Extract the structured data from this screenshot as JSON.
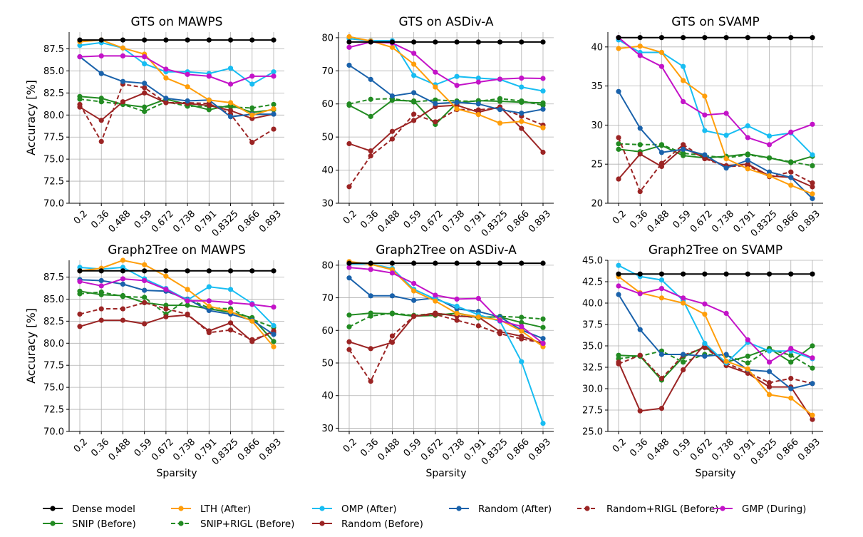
{
  "x_ticks": [
    "0.2",
    "0.36",
    "0.488",
    "0.59",
    "0.672",
    "0.738",
    "0.791",
    "0.8325",
    "0.866",
    "0.893"
  ],
  "series_styles": [
    {
      "key": "dense",
      "color": "#000000",
      "dashed": false
    },
    {
      "key": "lth",
      "color": "#ff9e0a",
      "dashed": false
    },
    {
      "key": "omp",
      "color": "#18bdf2",
      "dashed": false
    },
    {
      "key": "random_after",
      "color": "#1a62ab",
      "dashed": false
    },
    {
      "key": "random_rigl",
      "color": "#9b2424",
      "dashed": true
    },
    {
      "key": "gmp",
      "color": "#c313c8",
      "dashed": false
    },
    {
      "key": "snip",
      "color": "#228b22",
      "dashed": false
    },
    {
      "key": "snip_rigl",
      "color": "#228b22",
      "dashed": true
    },
    {
      "key": "random_before",
      "color": "#9b2424",
      "dashed": false
    }
  ],
  "legend": [
    {
      "key": "dense",
      "label": "Dense model"
    },
    {
      "key": "lth",
      "label": "LTH (After)"
    },
    {
      "key": "omp",
      "label": "OMP (After)"
    },
    {
      "key": "random_after",
      "label": "Random (After)"
    },
    {
      "key": "random_rigl",
      "label": "Random+RIGL (Before)"
    },
    {
      "key": "gmp",
      "label": "GMP (During)"
    },
    {
      "key": "snip",
      "label": "SNIP (Before)"
    },
    {
      "key": "snip_rigl",
      "label": "SNIP+RIGL (Before)"
    },
    {
      "key": "random_before",
      "label": "Random (Before)"
    }
  ],
  "chart_data": [
    {
      "type": "line",
      "title": "GTS on MAWPS",
      "ylabel": "Accuracy [%]",
      "xlabel": "",
      "ylim": [
        70.0,
        89.4
      ],
      "yticks": [
        "70.0",
        "72.5",
        "75.0",
        "77.5",
        "80.0",
        "82.5",
        "85.0",
        "87.5"
      ],
      "grid": true,
      "series": {
        "dense": [
          88.5,
          88.5,
          88.5,
          88.5,
          88.5,
          88.5,
          88.5,
          88.5,
          88.5,
          88.5
        ],
        "lth": [
          88.3,
          88.5,
          87.6,
          86.9,
          84.2,
          83.2,
          81.7,
          81.4,
          80.0,
          80.7
        ],
        "omp": [
          87.9,
          88.2,
          87.6,
          85.8,
          84.9,
          84.9,
          84.7,
          85.3,
          83.5,
          84.9
        ],
        "random_after": [
          86.6,
          84.7,
          83.8,
          83.6,
          81.9,
          81.6,
          81.7,
          79.8,
          80.1,
          80.1
        ],
        "random_rigl": [
          81.2,
          77.0,
          83.5,
          83.1,
          81.4,
          81.4,
          81.3,
          80.1,
          76.9,
          78.4
        ],
        "gmp": [
          86.6,
          86.7,
          86.7,
          86.6,
          85.2,
          84.6,
          84.4,
          83.5,
          84.4,
          84.4
        ],
        "snip": [
          82.1,
          81.9,
          81.2,
          80.9,
          81.8,
          81.2,
          80.6,
          81.1,
          80.3,
          80.6
        ],
        "snip_rigl": [
          81.8,
          81.5,
          81.2,
          80.4,
          81.5,
          81.0,
          81.0,
          80.9,
          80.8,
          81.2
        ],
        "random_before": [
          80.9,
          79.4,
          81.5,
          82.5,
          81.4,
          81.3,
          81.1,
          80.5,
          79.6,
          80.1
        ]
      }
    },
    {
      "type": "line",
      "title": "GTS on ASDiv-A",
      "ylabel": "",
      "xlabel": "",
      "ylim": [
        30,
        81.7
      ],
      "yticks": [
        "30",
        "40",
        "50",
        "60",
        "70",
        "80"
      ],
      "grid": true,
      "series": {
        "dense": [
          78.7,
          78.7,
          78.7,
          78.7,
          78.7,
          78.7,
          78.7,
          78.7,
          78.7,
          78.7
        ],
        "lth": [
          80.3,
          79.0,
          77.1,
          72.0,
          65.1,
          58.5,
          56.8,
          54.2,
          54.7,
          52.8
        ],
        "omp": [
          79.7,
          79.1,
          79.1,
          68.6,
          65.8,
          68.3,
          67.8,
          67.4,
          65.1,
          63.9
        ],
        "random_after": [
          71.7,
          67.4,
          62.4,
          63.4,
          60.1,
          60.5,
          60.0,
          58.3,
          57.2,
          58.4
        ],
        "random_rigl": [
          35.0,
          44.3,
          49.4,
          56.9,
          54.6,
          58.3,
          58.2,
          58.8,
          56.3,
          53.6
        ],
        "gmp": [
          77.1,
          78.7,
          78.4,
          75.3,
          69.6,
          65.6,
          66.6,
          67.5,
          67.8,
          67.7
        ],
        "snip": [
          59.6,
          56.2,
          61.1,
          60.9,
          53.8,
          60.3,
          61.0,
          60.8,
          60.5,
          60.3
        ],
        "snip_rigl": [
          60.0,
          61.4,
          61.6,
          60.6,
          61.2,
          60.9,
          60.8,
          61.6,
          60.9,
          59.6
        ],
        "random_before": [
          48.0,
          45.8,
          51.7,
          55.0,
          59.2,
          59.6,
          57.5,
          59.1,
          52.6,
          45.4
        ]
      }
    },
    {
      "type": "line",
      "title": "GTS on SVAMP",
      "ylabel": "",
      "xlabel": "",
      "ylim": [
        20,
        41.9
      ],
      "yticks": [
        "20",
        "25",
        "30",
        "35",
        "40"
      ],
      "grid": true,
      "series": {
        "dense": [
          41.2,
          41.2,
          41.2,
          41.2,
          41.2,
          41.2,
          41.2,
          41.2,
          41.2,
          41.2
        ],
        "lth": [
          39.8,
          40.1,
          39.3,
          35.7,
          33.7,
          25.7,
          24.4,
          23.5,
          22.3,
          21.2
        ],
        "omp": [
          40.9,
          39.3,
          39.3,
          37.5,
          29.3,
          28.7,
          29.9,
          28.6,
          29.0,
          26.2
        ],
        "random_after": [
          34.3,
          29.6,
          26.5,
          26.9,
          26.2,
          24.5,
          25.5,
          24.0,
          23.3,
          20.6
        ],
        "random_rigl": [
          28.4,
          21.5,
          25.1,
          27.5,
          25.7,
          24.7,
          24.8,
          23.4,
          24.0,
          22.6
        ],
        "gmp": [
          41.2,
          38.9,
          37.5,
          33.0,
          31.3,
          31.5,
          28.4,
          27.5,
          29.1,
          30.1
        ],
        "snip": [
          26.9,
          26.6,
          27.4,
          26.1,
          25.8,
          26.0,
          26.3,
          25.8,
          25.2,
          26.0
        ],
        "snip_rigl": [
          27.6,
          27.5,
          27.5,
          26.4,
          26.1,
          25.8,
          26.2,
          25.8,
          25.3,
          24.8
        ],
        "random_before": [
          23.1,
          26.3,
          24.7,
          27.1,
          25.8,
          24.8,
          25.0,
          23.5,
          23.3,
          22.1
        ]
      }
    },
    {
      "type": "line",
      "title": "Graph2Tree on MAWPS",
      "ylabel": "Accuracy [%]",
      "xlabel": "Sparsity",
      "ylim": [
        70.0,
        89.4
      ],
      "yticks": [
        "70.0",
        "72.5",
        "75.0",
        "77.5",
        "80.0",
        "82.5",
        "85.0",
        "87.5"
      ],
      "grid": true,
      "series": {
        "dense": [
          88.2,
          88.2,
          88.2,
          88.2,
          88.2,
          88.2,
          88.2,
          88.2,
          88.2,
          88.2
        ],
        "lth": [
          88.2,
          88.5,
          89.4,
          88.9,
          87.6,
          86.1,
          84.2,
          83.6,
          82.5,
          79.6
        ],
        "omp": [
          88.6,
          88.4,
          88.6,
          87.3,
          86.2,
          84.9,
          86.4,
          86.1,
          84.5,
          82.0
        ],
        "random_after": [
          87.2,
          87.1,
          86.7,
          86.0,
          85.9,
          85.0,
          83.7,
          83.3,
          82.6,
          81.0
        ],
        "random_rigl": [
          83.3,
          83.9,
          83.9,
          84.6,
          83.9,
          83.3,
          81.2,
          81.5,
          80.4,
          81.2
        ],
        "gmp": [
          87.0,
          86.5,
          87.3,
          87.1,
          86.1,
          84.8,
          84.8,
          84.6,
          84.4,
          84.1
        ],
        "snip": [
          85.9,
          85.5,
          85.4,
          84.6,
          84.3,
          84.3,
          83.9,
          83.5,
          82.9,
          80.2
        ],
        "snip_rigl": [
          85.6,
          85.8,
          85.3,
          85.2,
          83.3,
          85.0,
          84.0,
          83.9,
          82.7,
          81.8
        ],
        "random_before": [
          81.9,
          82.6,
          82.6,
          82.2,
          83.0,
          83.2,
          81.4,
          82.3,
          80.2,
          81.4
        ]
      }
    },
    {
      "type": "line",
      "title": "Graph2Tree on ASDiv-A",
      "ylabel": "",
      "xlabel": "Sparsity",
      "ylim": [
        29,
        81.5
      ],
      "yticks": [
        "30",
        "40",
        "50",
        "60",
        "70",
        "80"
      ],
      "grid": true,
      "series": {
        "dense": [
          80.6,
          80.6,
          80.6,
          80.6,
          80.6,
          80.6,
          80.6,
          80.6,
          80.6,
          80.6
        ],
        "lth": [
          81.1,
          80.3,
          78.6,
          72.1,
          69.0,
          65.2,
          64.1,
          63.2,
          59.8,
          55.0
        ],
        "omp": [
          80.4,
          80.4,
          79.0,
          72.6,
          69.6,
          67.4,
          64.8,
          62.8,
          50.4,
          31.5
        ],
        "random_after": [
          76.1,
          70.6,
          70.6,
          69.2,
          70.0,
          66.6,
          65.8,
          64.1,
          60.1,
          57.5
        ],
        "random_rigl": [
          54.1,
          44.4,
          58.3,
          64.4,
          64.9,
          63.1,
          61.4,
          59.0,
          57.4,
          56.1
        ],
        "gmp": [
          79.3,
          78.7,
          77.6,
          74.4,
          70.8,
          69.6,
          69.8,
          63.0,
          61.2,
          56.0
        ],
        "snip": [
          64.7,
          65.3,
          65.1,
          64.4,
          64.6,
          65.3,
          64.1,
          64.1,
          62.4,
          60.9
        ],
        "snip_rigl": [
          61.1,
          64.4,
          65.3,
          64.6,
          65.2,
          64.6,
          63.8,
          64.3,
          64.0,
          63.5
        ],
        "random_before": [
          56.5,
          54.4,
          56.3,
          64.3,
          65.3,
          64.4,
          64.1,
          59.6,
          58.2,
          55.9
        ]
      }
    },
    {
      "type": "line",
      "title": "Graph2Tree on SVAMP",
      "ylabel": "",
      "xlabel": "Sparsity",
      "ylim": [
        25.0,
        45.0
      ],
      "yticks": [
        "25.0",
        "27.5",
        "30.0",
        "32.5",
        "35.0",
        "37.5",
        "40.0",
        "42.5",
        "45.0"
      ],
      "grid": true,
      "series": {
        "dense": [
          43.4,
          43.4,
          43.4,
          43.4,
          43.4,
          43.4,
          43.4,
          43.4,
          43.4,
          43.4
        ],
        "lth": [
          43.1,
          41.2,
          40.6,
          40.0,
          38.7,
          33.2,
          32.3,
          29.3,
          28.9,
          26.9
        ],
        "omp": [
          44.4,
          43.1,
          42.7,
          40.3,
          35.3,
          33.0,
          35.4,
          34.4,
          34.4,
          33.5
        ],
        "random_after": [
          41.0,
          36.9,
          34.0,
          34.0,
          33.8,
          34.0,
          32.2,
          32.0,
          30.0,
          30.6
        ],
        "random_rigl": [
          32.9,
          33.9,
          31.2,
          33.9,
          34.8,
          33.0,
          31.9,
          30.7,
          31.2,
          30.6
        ],
        "gmp": [
          42.0,
          41.1,
          41.7,
          40.6,
          39.9,
          38.8,
          35.7,
          33.1,
          34.7,
          33.6
        ],
        "snip": [
          33.9,
          33.8,
          31.0,
          33.7,
          34.9,
          33.1,
          33.8,
          34.7,
          33.1,
          35.0
        ],
        "snip_rigl": [
          33.5,
          33.8,
          34.4,
          33.1,
          34.0,
          33.9,
          33.0,
          34.6,
          33.9,
          32.4
        ],
        "random_before": [
          33.1,
          27.4,
          27.7,
          32.2,
          35.2,
          32.7,
          31.8,
          30.2,
          30.2,
          26.4
        ]
      }
    }
  ]
}
